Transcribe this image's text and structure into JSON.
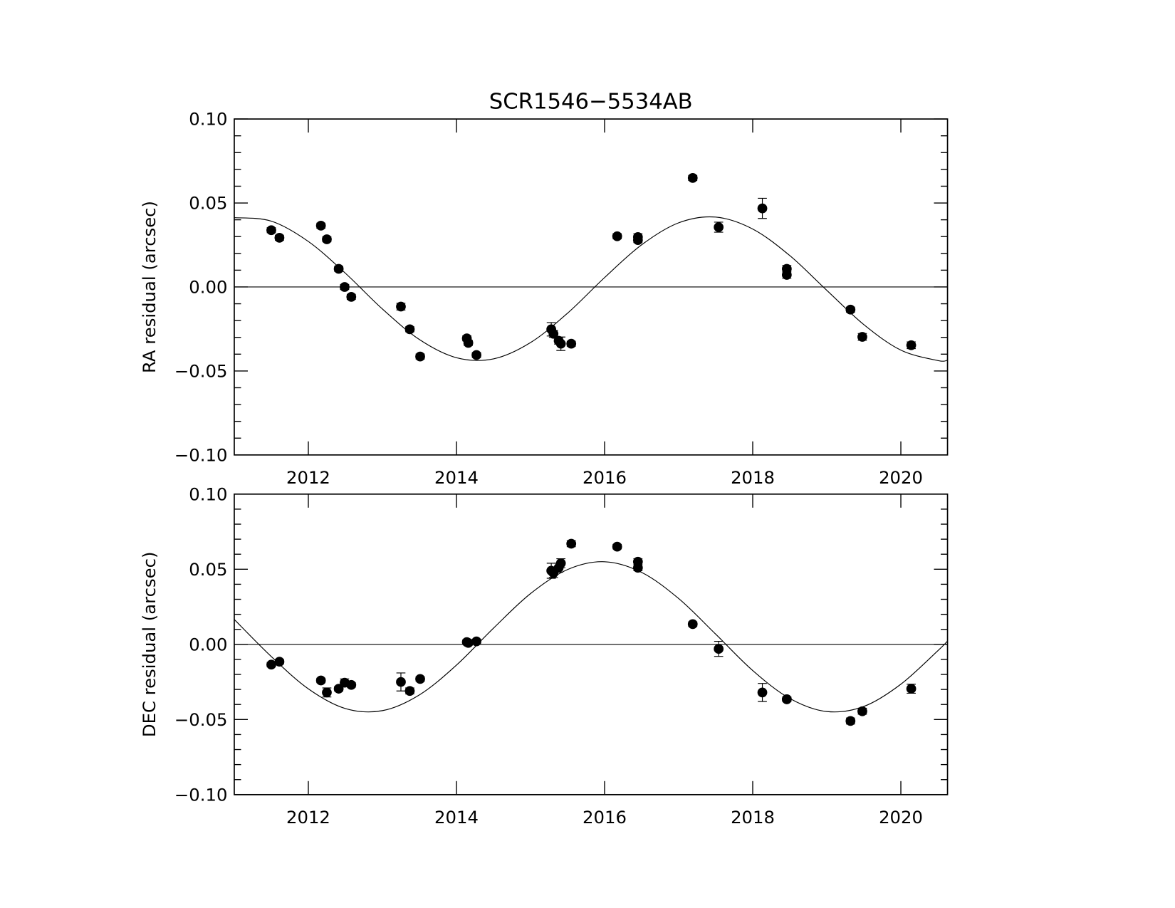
{
  "chart_data": [
    {
      "type": "scatter",
      "title": "SCR1546−5534AB",
      "ylabel": "RA residual (arcsec)",
      "x": [
        2011.5,
        2011.61,
        2012.17,
        2012.25,
        2012.41,
        2012.49,
        2012.58,
        2013.25,
        2013.37,
        2013.51,
        2014.14,
        2014.16,
        2014.27,
        2015.28,
        2015.31,
        2015.38,
        2015.41,
        2015.55,
        2016.17,
        2016.45,
        2016.45,
        2017.19,
        2017.54,
        2018.13,
        2018.46,
        2018.46,
        2019.32,
        2019.48,
        2020.14
      ],
      "values": [
        0.0338,
        0.0293,
        0.0365,
        0.0284,
        0.0108,
        0.0,
        -0.0059,
        -0.0117,
        -0.0252,
        -0.0414,
        -0.0306,
        -0.0333,
        -0.0405,
        -0.0252,
        -0.0279,
        -0.032,
        -0.0338,
        -0.0338,
        0.0302,
        0.0297,
        0.0279,
        0.0649,
        0.0356,
        0.0468,
        0.0108,
        0.0072,
        -0.0135,
        -0.0297,
        -0.0347
      ],
      "errors": [
        0.0015,
        0.0015,
        0.0015,
        0.0015,
        0.0015,
        0.0015,
        0.0015,
        0.002,
        0.0015,
        0.0015,
        0.0015,
        0.0015,
        0.0015,
        0.004,
        0.002,
        0.002,
        0.004,
        0.0015,
        0.0015,
        0.002,
        0.0015,
        0.0015,
        0.003,
        0.006,
        0.002,
        0.002,
        0.0015,
        0.002,
        0.002
      ],
      "color": "#000000",
      "model": {
        "x": [
          2011.0,
          2011.5,
          2012.0,
          2012.5,
          2013.0,
          2013.5,
          2014.0,
          2014.5,
          2015.0,
          2015.5,
          2016.0,
          2016.5,
          2017.0,
          2017.5,
          2018.0,
          2018.5,
          2019.0,
          2019.5,
          2020.0,
          2020.5,
          2020.63
        ],
        "values": [
          0.0413,
          0.0392,
          0.0271,
          0.0082,
          -0.0131,
          -0.0313,
          -0.0421,
          -0.0428,
          -0.0331,
          -0.0156,
          0.0056,
          0.0251,
          0.0382,
          0.0416,
          0.0345,
          0.0187,
          -0.002,
          -0.0224,
          -0.0376,
          -0.0438,
          -0.0436
        ]
      },
      "hline": 0,
      "xlim": [
        2011.0,
        2020.63
      ],
      "xticks": [
        2012,
        2014,
        2016,
        2018,
        2020
      ],
      "ylim": [
        -0.1,
        0.1
      ],
      "yticks": [
        {
          "value": -0.1,
          "label": "−0.10"
        },
        {
          "value": -0.05,
          "label": "−0.05"
        },
        {
          "value": 0,
          "label": "0.00"
        },
        {
          "value": 0.05,
          "label": "0.05"
        },
        {
          "value": 0.1,
          "label": "0.10"
        }
      ],
      "yminor_ticks": [
        -0.09,
        -0.08,
        -0.07,
        -0.06,
        -0.04,
        -0.03,
        -0.02,
        -0.01,
        0.01,
        0.02,
        0.03,
        0.04,
        0.06,
        0.07,
        0.08,
        0.09
      ]
    },
    {
      "type": "scatter",
      "ylabel": "DEC residual (arcsec)",
      "x": [
        2011.5,
        2011.61,
        2012.17,
        2012.25,
        2012.41,
        2012.49,
        2012.58,
        2013.25,
        2013.37,
        2013.51,
        2014.14,
        2014.16,
        2014.27,
        2015.28,
        2015.31,
        2015.38,
        2015.41,
        2015.55,
        2016.17,
        2016.45,
        2016.45,
        2017.19,
        2017.54,
        2018.13,
        2018.46,
        2018.46,
        2019.32,
        2019.48,
        2020.14
      ],
      "values": [
        -0.0135,
        -0.0115,
        -0.024,
        -0.032,
        -0.0295,
        -0.0255,
        -0.027,
        -0.025,
        -0.031,
        -0.023,
        0.0015,
        0.001,
        0.002,
        0.049,
        0.0475,
        0.051,
        0.054,
        0.067,
        0.065,
        0.055,
        0.051,
        0.0135,
        -0.003,
        -0.032,
        -0.0365,
        -0.0365,
        -0.051,
        -0.0445,
        -0.0295
      ],
      "errors": [
        0.0015,
        0.0015,
        0.0015,
        0.003,
        0.0015,
        0.0025,
        0.0015,
        0.006,
        0.002,
        0.0015,
        0.0015,
        0.0015,
        0.0015,
        0.005,
        0.003,
        0.003,
        0.003,
        0.002,
        0.0015,
        0.002,
        0.002,
        0.0015,
        0.005,
        0.006,
        0.0015,
        0.0015,
        0.002,
        0.002,
        0.003
      ],
      "color": "#000000",
      "model": {
        "x": [
          2011.0,
          2011.5,
          2012.0,
          2012.5,
          2013.0,
          2013.5,
          2014.0,
          2014.5,
          2015.0,
          2015.5,
          2016.0,
          2016.5,
          2017.0,
          2017.5,
          2018.0,
          2018.5,
          2019.0,
          2019.5,
          2020.0,
          2020.5,
          2020.63
        ],
        "values": [
          0.0166,
          -0.0081,
          -0.0296,
          -0.0427,
          -0.0441,
          -0.0336,
          -0.0138,
          0.0108,
          0.0338,
          0.0498,
          0.055,
          0.0479,
          0.0305,
          0.0068,
          -0.0174,
          -0.036,
          -0.0447,
          -0.0413,
          -0.0265,
          -0.0042,
          0.0022
        ]
      },
      "hline": 0,
      "xlim": [
        2011.0,
        2020.63
      ],
      "xticks": [
        2012,
        2014,
        2016,
        2018,
        2020
      ],
      "ylim": [
        -0.1,
        0.1
      ],
      "yticks": [
        {
          "value": -0.1,
          "label": "−0.10"
        },
        {
          "value": -0.05,
          "label": "−0.05"
        },
        {
          "value": 0,
          "label": "0.00"
        },
        {
          "value": 0.05,
          "label": "0.05"
        },
        {
          "value": 0.1,
          "label": "0.10"
        }
      ],
      "yminor_ticks": [
        -0.09,
        -0.08,
        -0.07,
        -0.06,
        -0.04,
        -0.03,
        -0.02,
        -0.01,
        0.01,
        0.02,
        0.03,
        0.04,
        0.06,
        0.07,
        0.08,
        0.09
      ]
    }
  ]
}
